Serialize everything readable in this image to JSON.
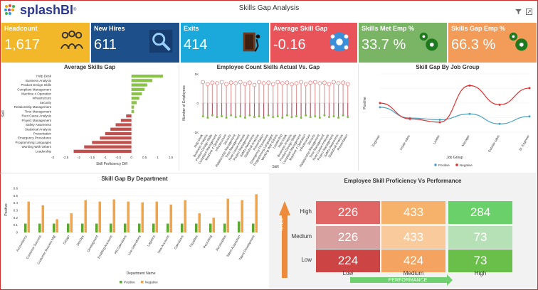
{
  "header": {
    "logo_text": "splashBI",
    "logo_tm": "®",
    "title": "Skills Gap Analysis",
    "filter_icon": "filter-icon",
    "expand_icon": "expand-icon"
  },
  "kpis": [
    {
      "label": "Headcount",
      "value": "1,617",
      "color": "#f2b829",
      "icon": "people-group-icon"
    },
    {
      "label": "New Hires",
      "value": "611",
      "color": "#1d4f8a",
      "icon": "person-search-icon"
    },
    {
      "label": "Exits",
      "value": "414",
      "color": "#1ba8db",
      "icon": "door-exit-icon"
    },
    {
      "label": "Average Skill Gap",
      "value": "-0.16",
      "color": "#e8545a",
      "icon": "network-people-icon"
    },
    {
      "label": "Skills Met Emp %",
      "value": "33.7 %",
      "color": "#7ab565",
      "icon": "gears-icon"
    },
    {
      "label": "Skills Gap Emp %",
      "value": "66.3 %",
      "color": "#f39b59",
      "icon": "gears-icon"
    }
  ],
  "avg_skills_gap": {
    "title": "Average Skills Gap",
    "ylabel": "Skill",
    "xlabel": "Skill Proficiency Diff",
    "ticks": [
      "-3",
      "-2.5",
      "-2",
      "-1.5",
      "-1",
      "-0.5",
      "0",
      "0.5",
      "1",
      "1.5"
    ]
  },
  "employee_count": {
    "title": "Employee Count Skills Actual Vs. Gap",
    "ylabel": "Number of Employees",
    "xlabel": "Skill",
    "yticks": [
      "1K",
      "0",
      "-1K"
    ]
  },
  "job_group": {
    "title": "Skill Gap By Job Group",
    "ylabel": "Positive",
    "xlabel": "Job Group",
    "legend_positive": "Positive",
    "legend_negative": "Negative"
  },
  "department": {
    "title": "Skill Gap By Department",
    "ylabel": "Positive",
    "xlabel": "Department Name",
    "legend_positive": "Positive",
    "legend_negative": "Negative",
    "yticks": [
      "0.6",
      "0.5",
      "0.4",
      "0.3",
      "0.2",
      "0.1",
      "0"
    ]
  },
  "performance": {
    "title": "Employee Skill Proficiency Vs Performance",
    "skill_axis": "SKILL",
    "performance_axis": "PERFORMANCE",
    "rows": [
      "High",
      "Medium",
      "Low"
    ],
    "cols": [
      "Low",
      "Medium",
      "High"
    ],
    "values": [
      [
        "226",
        "433",
        "284"
      ],
      [
        "226",
        "433",
        "73"
      ],
      [
        "224",
        "424",
        "73"
      ]
    ],
    "colors": [
      [
        "#e06666",
        "#f6b26b",
        "#6ad06a"
      ],
      [
        "#d9a0a0",
        "#f9cb9c",
        "#b6e1b6"
      ],
      [
        "#cc4444",
        "#f4a460",
        "#6abf4b"
      ]
    ]
  },
  "chart_data": [
    {
      "type": "bar",
      "title": "Average Skills Gap",
      "orientation": "horizontal",
      "categories": [
        "Help Desk",
        "Business Analysis",
        "Product Design Skills",
        "Compliant Management",
        "Machine 4 Operation",
        "Infrastructure",
        "Security",
        "Relationship Management",
        "Time Management",
        "Root Cause Analysis",
        "Project Management",
        "Safety Awareness",
        "Statistical Analysis",
        "Presentation",
        "Emergency Procedures",
        "Programming Languages",
        "Working With Others",
        "Leadership"
      ],
      "values": [
        1.2,
        0.8,
        0.6,
        0.5,
        0.4,
        0.3,
        0.2,
        0.1,
        0.1,
        -0.2,
        -0.4,
        -0.6,
        -0.8,
        -1.0,
        -1.2,
        -1.5,
        -1.8,
        -2.2
      ],
      "xlabel": "Skill Proficiency Diff",
      "ylabel": "Skill",
      "xlim": [
        -3,
        1.5
      ]
    },
    {
      "type": "bar",
      "title": "Employee Count Skills Actual Vs. Gap",
      "series": [
        {
          "name": "Actual",
          "values": [
            720,
            650,
            700,
            680,
            720,
            650,
            700,
            680,
            720,
            650,
            700,
            620,
            720,
            680,
            700,
            650,
            720,
            680,
            700,
            650,
            680,
            720,
            650,
            700,
            720,
            680,
            700,
            650,
            720,
            680,
            700,
            650
          ]
        },
        {
          "name": "Gap",
          "values": [
            -450,
            -500,
            -420,
            -480,
            -450,
            -500,
            -420,
            -480,
            -450,
            -500,
            -420,
            -480,
            -450,
            -500,
            -420,
            -480,
            -450,
            -500,
            -420,
            -480,
            -450,
            -500,
            -420,
            -480,
            -450,
            -500,
            -420,
            -480,
            -450,
            -500,
            -420,
            -480
          ]
        }
      ],
      "ylabel": "Number of Employees",
      "xlabel": "Skill",
      "ylim": [
        -1000,
        1000
      ]
    },
    {
      "type": "line",
      "title": "Skill Gap By Job Group",
      "categories": [
        "Engineer",
        "Inside sales",
        "Leader",
        "Manager",
        "Outside sales",
        "Sr. Engineer"
      ],
      "series": [
        {
          "name": "Positive",
          "values": [
            0.3,
            0.17,
            0.15,
            0.22,
            0.1,
            0.19
          ]
        },
        {
          "name": "Negative",
          "values": [
            0.35,
            0.16,
            0.12,
            0.56,
            0.33,
            0.53
          ]
        }
      ],
      "xlabel": "Job Group",
      "ylabel": "Positive",
      "ylim": [
        0,
        0.7
      ]
    },
    {
      "type": "bar",
      "title": "Skill Gap By Department",
      "categories": [
        "Accountancy",
        "Customer Success",
        "Customer Success Mgt",
        "Design",
        "DevOps",
        "Development",
        "Enabling Accounts",
        "HR Operations",
        "Line Operations",
        "Logistics",
        "New Accounts",
        "Operations",
        "Payables",
        "Recruiting",
        "Receivables",
        "Talent Acquisition",
        "Talent Development"
      ],
      "series": [
        {
          "name": "Positive",
          "values": [
            0.12,
            0.12,
            0.12,
            0.12,
            0.12,
            0.12,
            0.12,
            0.12,
            0.12,
            0.12,
            0.12,
            0.12,
            0.12,
            0.12,
            0.12,
            0.15,
            0.12
          ]
        },
        {
          "name": "Negative",
          "values": [
            0.42,
            0.37,
            0.18,
            0.26,
            0.44,
            0.42,
            0.45,
            0.42,
            0.41,
            0.42,
            0.38,
            0.44,
            0.26,
            0.2,
            0.46,
            0.44,
            0.52
          ]
        }
      ],
      "xlabel": "Department Name",
      "ylabel": "Positive",
      "ylim": [
        0,
        0.6
      ]
    }
  ]
}
